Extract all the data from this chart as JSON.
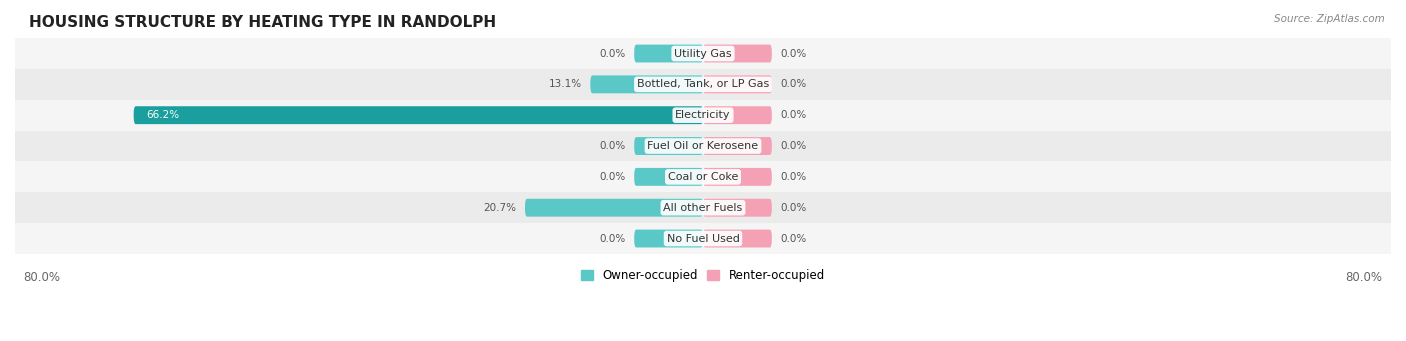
{
  "title": "HOUSING STRUCTURE BY HEATING TYPE IN RANDOLPH",
  "source": "Source: ZipAtlas.com",
  "categories": [
    "Utility Gas",
    "Bottled, Tank, or LP Gas",
    "Electricity",
    "Fuel Oil or Kerosene",
    "Coal or Coke",
    "All other Fuels",
    "No Fuel Used"
  ],
  "owner_values": [
    0.0,
    13.1,
    66.2,
    0.0,
    0.0,
    20.7,
    0.0
  ],
  "renter_values": [
    0.0,
    0.0,
    0.0,
    0.0,
    0.0,
    0.0,
    0.0
  ],
  "owner_color": "#5bc8c8",
  "owner_color_dark": "#1a9e9e",
  "renter_color": "#f4a0b5",
  "row_bg_color_light": "#f5f5f5",
  "row_bg_color_dark": "#ebebeb",
  "xlim_left": -80.0,
  "xlim_right": 80.0,
  "stub_size": 8.0,
  "x_axis_left_label": "80.0%",
  "x_axis_right_label": "80.0%",
  "owner_label": "Owner-occupied",
  "renter_label": "Renter-occupied",
  "title_fontsize": 11,
  "source_fontsize": 7.5,
  "category_fontsize": 8.0,
  "value_fontsize": 7.5
}
